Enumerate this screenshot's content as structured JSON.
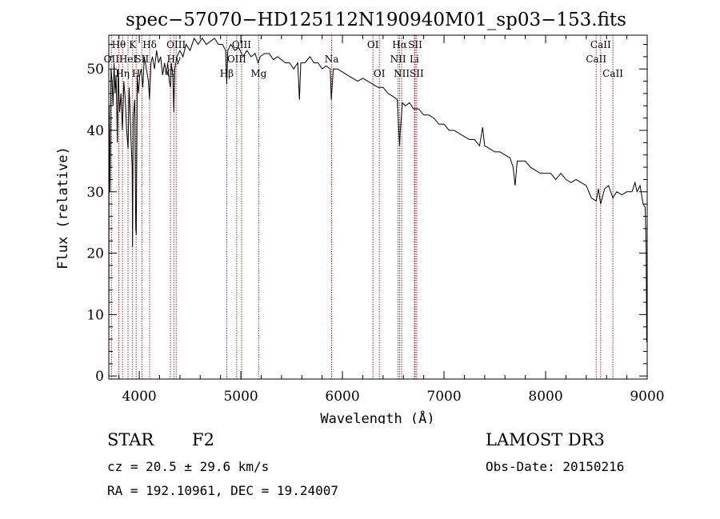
{
  "chart_data": {
    "type": "line",
    "title": "spec−57070−HD125112N190940M01_sp03−153.fits",
    "xlabel": "Wavelength (Å)",
    "ylabel": "Flux (relative)",
    "xlim": [
      3700,
      9000
    ],
    "ylim": [
      -0.5,
      55.5
    ],
    "x_ticks": [
      4000,
      5000,
      6000,
      7000,
      8000,
      9000
    ],
    "y_ticks": [
      0,
      10,
      20,
      30,
      40,
      50
    ],
    "grid": false,
    "series": [
      {
        "name": "flux",
        "points": [
          [
            3700,
            0.5
          ],
          [
            3703,
            44
          ],
          [
            3712,
            30
          ],
          [
            3722,
            50
          ],
          [
            3732,
            48
          ],
          [
            3742,
            44
          ],
          [
            3752,
            51
          ],
          [
            3762,
            46
          ],
          [
            3772,
            49
          ],
          [
            3784,
            38
          ],
          [
            3792,
            50
          ],
          [
            3806,
            43
          ],
          [
            3820,
            46
          ],
          [
            3834,
            40
          ],
          [
            3848,
            48
          ],
          [
            3862,
            45
          ],
          [
            3876,
            40
          ],
          [
            3890,
            37
          ],
          [
            3900,
            47
          ],
          [
            3910,
            43
          ],
          [
            3920,
            38
          ],
          [
            3930,
            34
          ],
          [
            3934,
            21
          ],
          [
            3940,
            42
          ],
          [
            3955,
            45
          ],
          [
            3965,
            24
          ],
          [
            3970,
            23
          ],
          [
            3980,
            49
          ],
          [
            3992,
            46
          ],
          [
            4005,
            49
          ],
          [
            4020,
            50
          ],
          [
            4035,
            47
          ],
          [
            4050,
            52
          ],
          [
            4070,
            50
          ],
          [
            4090,
            48
          ],
          [
            4101,
            45
          ],
          [
            4115,
            51
          ],
          [
            4130,
            52
          ],
          [
            4150,
            50
          ],
          [
            4170,
            53
          ],
          [
            4190,
            51
          ],
          [
            4210,
            52
          ],
          [
            4230,
            49
          ],
          [
            4250,
            51
          ],
          [
            4265,
            49
          ],
          [
            4280,
            51
          ],
          [
            4295,
            48
          ],
          [
            4308,
            47
          ],
          [
            4315,
            51
          ],
          [
            4330,
            49
          ],
          [
            4340,
            43
          ],
          [
            4350,
            50
          ],
          [
            4370,
            52
          ],
          [
            4400,
            53
          ],
          [
            4430,
            52
          ],
          [
            4460,
            54
          ],
          [
            4500,
            53
          ],
          [
            4540,
            55
          ],
          [
            4580,
            54
          ],
          [
            4620,
            55
          ],
          [
            4660,
            54
          ],
          [
            4700,
            54.5
          ],
          [
            4740,
            55
          ],
          [
            4780,
            54
          ],
          [
            4820,
            54
          ],
          [
            4850,
            53
          ],
          [
            4861,
            47.5
          ],
          [
            4872,
            53
          ],
          [
            4900,
            54
          ],
          [
            4940,
            53
          ],
          [
            4980,
            53.5
          ],
          [
            5020,
            52
          ],
          [
            5060,
            53
          ],
          [
            5100,
            52
          ],
          [
            5140,
            52.5
          ],
          [
            5170,
            51
          ],
          [
            5190,
            52
          ],
          [
            5230,
            52.5
          ],
          [
            5280,
            52.5
          ],
          [
            5320,
            51.5
          ],
          [
            5360,
            52
          ],
          [
            5400,
            51.5
          ],
          [
            5440,
            51
          ],
          [
            5480,
            51
          ],
          [
            5520,
            50
          ],
          [
            5560,
            51
          ],
          [
            5577,
            45
          ],
          [
            5590,
            51
          ],
          [
            5630,
            51
          ],
          [
            5680,
            52
          ],
          [
            5720,
            51
          ],
          [
            5760,
            51
          ],
          [
            5800,
            50
          ],
          [
            5840,
            50.5
          ],
          [
            5880,
            50
          ],
          [
            5890,
            45
          ],
          [
            5896,
            46.5
          ],
          [
            5910,
            50
          ],
          [
            5950,
            50
          ],
          [
            6000,
            49.5
          ],
          [
            6050,
            49
          ],
          [
            6100,
            48.5
          ],
          [
            6150,
            48
          ],
          [
            6200,
            48.5
          ],
          [
            6250,
            48
          ],
          [
            6300,
            47.5
          ],
          [
            6350,
            47
          ],
          [
            6400,
            47
          ],
          [
            6450,
            46
          ],
          [
            6500,
            45.5
          ],
          [
            6540,
            45
          ],
          [
            6555,
            40
          ],
          [
            6563,
            37.5
          ],
          [
            6570,
            40
          ],
          [
            6590,
            44.5
          ],
          [
            6620,
            44
          ],
          [
            6660,
            44.5
          ],
          [
            6700,
            43.5
          ],
          [
            6750,
            43.5
          ],
          [
            6800,
            42.5
          ],
          [
            6850,
            42.5
          ],
          [
            6900,
            42
          ],
          [
            6950,
            41
          ],
          [
            7000,
            41
          ],
          [
            7050,
            40
          ],
          [
            7100,
            40
          ],
          [
            7150,
            39.5
          ],
          [
            7200,
            39
          ],
          [
            7250,
            38.5
          ],
          [
            7300,
            38.5
          ],
          [
            7350,
            37.5
          ],
          [
            7380,
            40.5
          ],
          [
            7400,
            37.5
          ],
          [
            7450,
            37
          ],
          [
            7500,
            36.5
          ],
          [
            7550,
            36.5
          ],
          [
            7600,
            36
          ],
          [
            7650,
            35.5
          ],
          [
            7680,
            34
          ],
          [
            7700,
            31
          ],
          [
            7720,
            35
          ],
          [
            7760,
            35
          ],
          [
            7800,
            35
          ],
          [
            7850,
            34
          ],
          [
            7900,
            33.5
          ],
          [
            7950,
            33
          ],
          [
            8000,
            33
          ],
          [
            8050,
            33
          ],
          [
            8100,
            32
          ],
          [
            8150,
            33
          ],
          [
            8200,
            32
          ],
          [
            8250,
            31.5
          ],
          [
            8300,
            32
          ],
          [
            8350,
            31.5
          ],
          [
            8400,
            31
          ],
          [
            8450,
            29
          ],
          [
            8498,
            28.5
          ],
          [
            8520,
            30.5
          ],
          [
            8542,
            28
          ],
          [
            8580,
            30.5
          ],
          [
            8620,
            31
          ],
          [
            8662,
            29
          ],
          [
            8700,
            30
          ],
          [
            8750,
            29.5
          ],
          [
            8800,
            30
          ],
          [
            8850,
            30
          ],
          [
            8880,
            31.5
          ],
          [
            8900,
            30
          ],
          [
            8930,
            31
          ],
          [
            8960,
            28
          ],
          [
            8980,
            27.5
          ],
          [
            8990,
            21
          ],
          [
            8995,
            5.5
          ]
        ]
      }
    ],
    "lines": [
      {
        "wl": 3726,
        "label": "OII",
        "row": 1
      },
      {
        "wl": 3798,
        "label": "Hθ",
        "row": 0
      },
      {
        "wl": 3835,
        "label": "Hη",
        "row": 2
      },
      {
        "wl": 3889,
        "label": "HeI",
        "row": 1
      },
      {
        "wl": 3934,
        "label": "K",
        "row": 0
      },
      {
        "wl": 3969,
        "label": "H",
        "row": 2
      },
      {
        "wl": 4026,
        "label": "SII",
        "row": 1
      },
      {
        "wl": 4102,
        "label": "Hδ",
        "row": 0
      },
      {
        "wl": 4307,
        "label": "G",
        "row": 2
      },
      {
        "wl": 4340,
        "label": "Hγ",
        "row": 1
      },
      {
        "wl": 4363,
        "label": "OIII",
        "row": 0
      },
      {
        "wl": 4861,
        "label": "Hβ",
        "row": 2
      },
      {
        "wl": 4959,
        "label": "OIII",
        "row": 1
      },
      {
        "wl": 5007,
        "label": "OIII",
        "row": 0
      },
      {
        "wl": 5175,
        "label": "Mg",
        "row": 2
      },
      {
        "wl": 5894,
        "label": "Na",
        "row": 1
      },
      {
        "wl": 6300,
        "label": "OI",
        "row": 0
      },
      {
        "wl": 6363,
        "label": "OI",
        "row": 2
      },
      {
        "wl": 6548,
        "label": "NII",
        "row": 1
      },
      {
        "wl": 6563,
        "label": "Hα",
        "row": 0
      },
      {
        "wl": 6583,
        "label": "NII",
        "row": 2
      },
      {
        "wl": 6708,
        "label": "Li",
        "row": 1
      },
      {
        "wl": 6716,
        "label": "SII",
        "row": 0
      },
      {
        "wl": 6731,
        "label": "SII",
        "row": 2
      },
      {
        "wl": 8498,
        "label": "CaII",
        "row": 1
      },
      {
        "wl": 8542,
        "label": "CaII",
        "row": 0
      },
      {
        "wl": 8662,
        "label": "CaII",
        "row": 2
      }
    ],
    "line_color": "#b22222"
  },
  "info": {
    "object_class": "STAR",
    "subclass": "F2",
    "survey": "LAMOST DR3",
    "cz": "cz = 20.5 ± 29.6 km/s",
    "obs_date": "Obs-Date: 20150216",
    "coords": "RA = 192.10961, DEC =  19.24007"
  }
}
